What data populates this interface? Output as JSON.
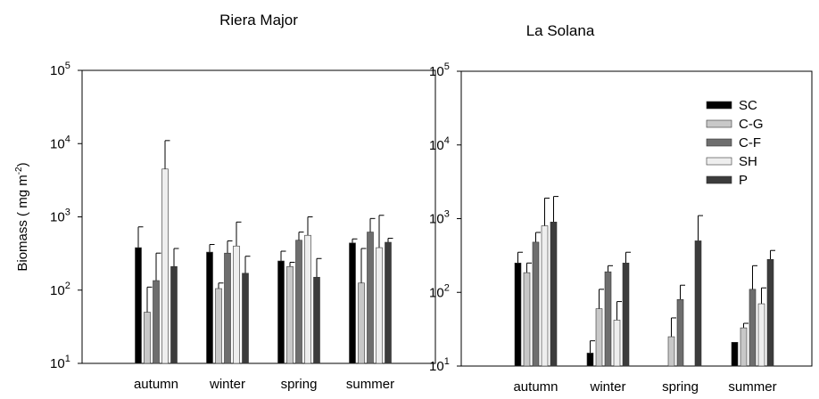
{
  "chart_data": [
    {
      "type": "bar",
      "title": "Riera Major",
      "log_scale": true,
      "ylabel": [
        "Biomass ( mg m",
        "-2",
        ")"
      ],
      "categories": [
        "autumn",
        "winter",
        "spring",
        "summer"
      ],
      "ylim": [
        10,
        100000
      ],
      "yticks": [
        {
          "value": 10,
          "label": "10",
          "exponent": "1"
        },
        {
          "value": 100,
          "label": "10",
          "exponent": "2"
        },
        {
          "value": 1000,
          "label": "10",
          "exponent": "3"
        },
        {
          "value": 10000,
          "label": "10",
          "exponent": "4"
        },
        {
          "value": 100000,
          "label": "10",
          "exponent": "5"
        }
      ],
      "series": [
        {
          "name": "SC",
          "color": "#000000",
          "values": [
            380,
            330,
            250,
            440
          ],
          "errors": [
            350,
            90,
            90,
            60
          ]
        },
        {
          "name": "C-G",
          "color": "#c8c8c8",
          "values": [
            50,
            105,
            210,
            125
          ],
          "errors": [
            60,
            20,
            30,
            245
          ]
        },
        {
          "name": "C-F",
          "color": "#6e6e6e",
          "values": [
            135,
            320,
            480,
            620
          ],
          "errors": [
            185,
            150,
            140,
            330
          ]
        },
        {
          "name": "SH",
          "color": "#eeeeee",
          "values": [
            4500,
            400,
            560,
            380
          ],
          "errors": [
            6500,
            450,
            440,
            670
          ]
        },
        {
          "name": "P",
          "color": "#3c3c3c",
          "values": [
            210,
            170,
            150,
            450
          ],
          "errors": [
            160,
            120,
            120,
            60
          ]
        }
      ]
    },
    {
      "type": "bar",
      "title": "La Solana",
      "log_scale": true,
      "legend": "upper right",
      "categories": [
        "autumn",
        "winter",
        "spring",
        "summer"
      ],
      "ylim": [
        10,
        100000
      ],
      "yticks": [
        {
          "value": 10,
          "label": "10",
          "exponent": "1"
        },
        {
          "value": 100,
          "label": "10",
          "exponent": "2"
        },
        {
          "value": 1000,
          "label": "10",
          "exponent": "3"
        },
        {
          "value": 10000,
          "label": "10",
          "exponent": "4"
        },
        {
          "value": 100000,
          "label": "10",
          "exponent": "5"
        }
      ],
      "series": [
        {
          "name": "SC",
          "color": "#000000",
          "values": [
            250,
            15,
            null,
            21
          ],
          "errors": [
            100,
            7,
            null,
            null
          ]
        },
        {
          "name": "C-G",
          "color": "#c8c8c8",
          "values": [
            185,
            60,
            25,
            33
          ],
          "errors": [
            65,
            50,
            20,
            5
          ]
        },
        {
          "name": "C-F",
          "color": "#6e6e6e",
          "values": [
            480,
            190,
            80,
            110
          ],
          "errors": [
            170,
            40,
            45,
            120
          ]
        },
        {
          "name": "SH",
          "color": "#eeeeee",
          "values": [
            800,
            42,
            null,
            70
          ],
          "errors": [
            1100,
            33,
            null,
            45
          ]
        },
        {
          "name": "P",
          "color": "#3c3c3c",
          "values": [
            900,
            250,
            500,
            280
          ],
          "errors": [
            1100,
            100,
            600,
            90
          ]
        }
      ]
    }
  ]
}
